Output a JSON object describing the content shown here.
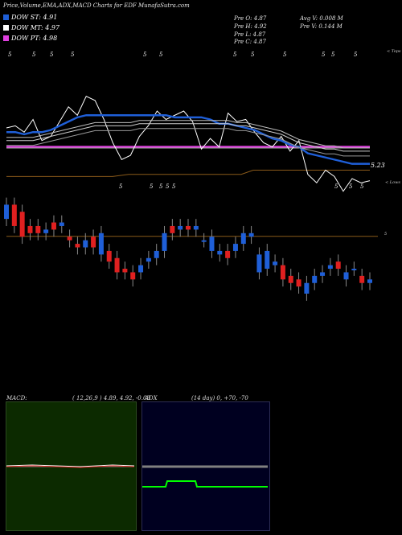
{
  "header": {
    "title": "Price,Volume,EMA,ADX,MACD Charts for EDF MunafaSutra.com"
  },
  "legend": [
    {
      "label": "DOW ST: 4.91",
      "color": "#1f5fd8"
    },
    {
      "label": "DOW MT: 4.97",
      "color": "#ffffff"
    },
    {
      "label": "DOW PT: 4.98",
      "color": "#e040e0"
    }
  ],
  "stats": {
    "prev_open": "Pre  O: 4.87",
    "prev_high": "Pre  H: 4.92",
    "prev_low": "Pre  L: 4.87",
    "prev_close": "Pre  C: 4.87",
    "avg_volume": "Avg V: 0.008  M",
    "prev_volume": "Pre  V: 0.144  M"
  },
  "markers": {
    "tops": "< Tops",
    "lows": "< Lows",
    "price_label": "5.23",
    "mid_price": "5",
    "dot": "5"
  },
  "macd": {
    "label": "MACD:",
    "params": "( 12,26,9 ) 4.89, 4.92, -0.03"
  },
  "adx": {
    "label": "ADX",
    "params": "(14  day) 0, +70, -70"
  },
  "colors": {
    "up": "#1f5fd8",
    "down": "#e02020",
    "ema_short": "#1f5fd8",
    "ema_long": "#ffffff",
    "pt": "#e040e0",
    "brown": "#8a5a1a",
    "macd_bg": "#0c2a00",
    "adx_bg": "#000020",
    "adx_green": "#00ff00",
    "adx_grey": "#808080"
  },
  "chart_data": {
    "type": "line",
    "title": "Price,Volume,EMA,ADX,MACD Charts for EDF MunafaSutra.com",
    "ylim": [
      4.6,
      5.4
    ],
    "series": [
      {
        "name": "Price",
        "values": [
          5.08,
          5.09,
          5.06,
          5.12,
          5.02,
          5.04,
          5.11,
          5.18,
          5.14,
          5.23,
          5.21,
          5.12,
          5.01,
          4.93,
          4.95,
          5.04,
          5.09,
          5.16,
          5.12,
          5.14,
          5.16,
          5.11,
          4.98,
          5.03,
          4.99,
          5.15,
          5.11,
          5.12,
          5.06,
          5.01,
          4.99,
          5.04,
          4.97,
          5.02,
          4.86,
          4.82,
          4.88,
          4.85,
          4.78,
          4.84,
          4.82,
          4.83
        ]
      },
      {
        "name": "DOW ST",
        "values": [
          5.06,
          5.06,
          5.05,
          5.06,
          5.06,
          5.07,
          5.09,
          5.11,
          5.13,
          5.14,
          5.14,
          5.14,
          5.14,
          5.14,
          5.14,
          5.14,
          5.14,
          5.14,
          5.14,
          5.13,
          5.13,
          5.13,
          5.13,
          5.12,
          5.1,
          5.1,
          5.09,
          5.08,
          5.07,
          5.05,
          5.03,
          5.02,
          5.0,
          4.99,
          4.96,
          4.95,
          4.94,
          4.93,
          4.92,
          4.91,
          4.91,
          4.91
        ]
      },
      {
        "name": "DOW MT",
        "values": [
          5.02,
          5.02,
          5.02,
          5.02,
          5.03,
          5.04,
          5.05,
          5.06,
          5.07,
          5.08,
          5.09,
          5.09,
          5.09,
          5.09,
          5.09,
          5.1,
          5.1,
          5.1,
          5.1,
          5.1,
          5.1,
          5.1,
          5.1,
          5.1,
          5.1,
          5.1,
          5.09,
          5.09,
          5.08,
          5.07,
          5.06,
          5.05,
          5.03,
          5.01,
          5.0,
          4.99,
          4.98,
          4.98,
          4.97,
          4.97,
          4.97,
          4.97
        ]
      },
      {
        "name": "DOW PT",
        "values": [
          4.99,
          4.99,
          4.99,
          4.99,
          4.99,
          4.99,
          4.99,
          4.99,
          4.99,
          4.99,
          4.99,
          4.99,
          4.99,
          4.99,
          4.99,
          4.99,
          4.99,
          4.99,
          4.99,
          4.99,
          4.99,
          4.99,
          4.99,
          4.99,
          4.99,
          4.99,
          4.99,
          4.99,
          4.99,
          4.99,
          4.99,
          4.99,
          4.99,
          4.99,
          4.99,
          4.99,
          4.99,
          4.98,
          4.98,
          4.98,
          4.98,
          4.98
        ]
      }
    ],
    "candles": [
      {
        "o": 5.05,
        "c": 5.09,
        "up": true
      },
      {
        "o": 5.09,
        "c": 5.03,
        "up": false
      },
      {
        "o": 5.07,
        "c": 5.0,
        "up": false
      },
      {
        "o": 5.03,
        "c": 5.01,
        "up": false
      },
      {
        "o": 5.03,
        "c": 5.01,
        "up": false
      },
      {
        "o": 5.01,
        "c": 5.02,
        "up": true
      },
      {
        "o": 5.04,
        "c": 5.02,
        "up": false
      },
      {
        "o": 5.03,
        "c": 5.04,
        "up": true
      },
      {
        "o": 5.0,
        "c": 4.99,
        "up": false
      },
      {
        "o": 4.98,
        "c": 4.97,
        "up": false
      },
      {
        "o": 4.97,
        "c": 4.99,
        "up": true
      },
      {
        "o": 5.0,
        "c": 4.97,
        "up": false
      },
      {
        "o": 5.01,
        "c": 4.95,
        "up": true
      },
      {
        "o": 4.96,
        "c": 4.93,
        "up": false
      },
      {
        "o": 4.94,
        "c": 4.9,
        "up": false
      },
      {
        "o": 4.91,
        "c": 4.9,
        "up": false
      },
      {
        "o": 4.9,
        "c": 4.88,
        "up": false
      },
      {
        "o": 4.92,
        "c": 4.9,
        "up": true
      },
      {
        "o": 4.94,
        "c": 4.93,
        "up": true
      },
      {
        "o": 4.94,
        "c": 4.96,
        "up": true
      },
      {
        "o": 4.96,
        "c": 5.01,
        "up": true
      },
      {
        "o": 5.01,
        "c": 5.03,
        "up": false
      },
      {
        "o": 5.02,
        "c": 5.03,
        "up": true
      },
      {
        "o": 5.02,
        "c": 5.03,
        "up": false
      },
      {
        "o": 5.02,
        "c": 5.03,
        "up": true
      },
      {
        "o": 4.99,
        "c": 4.99,
        "up": true
      },
      {
        "o": 5.0,
        "c": 4.96,
        "up": true
      },
      {
        "o": 4.96,
        "c": 4.95,
        "up": true
      },
      {
        "o": 4.96,
        "c": 4.94,
        "up": false
      },
      {
        "o": 4.96,
        "c": 4.98,
        "up": true
      },
      {
        "o": 4.98,
        "c": 5.01,
        "up": true
      },
      {
        "o": 5.01,
        "c": 5.0,
        "up": true
      },
      {
        "o": 4.95,
        "c": 4.9,
        "up": true
      },
      {
        "o": 4.96,
        "c": 4.91,
        "up": true
      },
      {
        "o": 4.93,
        "c": 4.92,
        "up": true
      },
      {
        "o": 4.92,
        "c": 4.88,
        "up": false
      },
      {
        "o": 4.89,
        "c": 4.87,
        "up": false
      },
      {
        "o": 4.88,
        "c": 4.86,
        "up": false
      },
      {
        "o": 4.84,
        "c": 4.87,
        "up": true
      },
      {
        "o": 4.87,
        "c": 4.89,
        "up": true
      },
      {
        "o": 4.89,
        "c": 4.9,
        "up": true
      },
      {
        "o": 4.91,
        "c": 4.92,
        "up": true
      },
      {
        "o": 4.93,
        "c": 4.91,
        "up": false
      },
      {
        "o": 4.9,
        "c": 4.88,
        "up": true
      },
      {
        "o": 4.91,
        "c": 4.91,
        "up": true
      },
      {
        "o": 4.89,
        "c": 4.87,
        "up": false
      },
      {
        "o": 4.88,
        "c": 4.87,
        "up": true
      }
    ]
  }
}
